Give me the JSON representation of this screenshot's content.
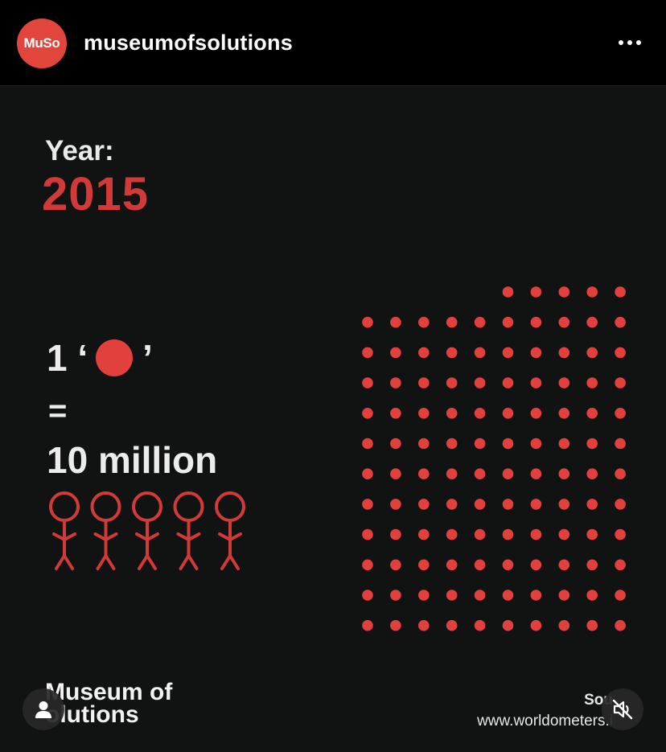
{
  "header": {
    "avatar_text": "MuSo",
    "username": "museumofsolutions",
    "more_icon": "more-horizontal-icon"
  },
  "post": {
    "year_label": "Year:",
    "year_value": "2015",
    "legend_prefix": "1 ‘",
    "legend_suffix": "’",
    "equals": "=",
    "unit_value": "10 million",
    "brand_line1": "Museum of",
    "brand_line2": "olutions",
    "source_label": "Sou",
    "source_url": "www.worldometers.i",
    "colors": {
      "accent": "#d23a37",
      "dot": "#e1403c",
      "background": "#111212"
    },
    "dot_grid": {
      "columns": 10,
      "full_rows": 11,
      "partial_row_dots": 5,
      "dot_value_millions": 10
    },
    "figure_count": 5,
    "user_icon": "user-icon",
    "mute_icon": "volume-muted-icon"
  }
}
